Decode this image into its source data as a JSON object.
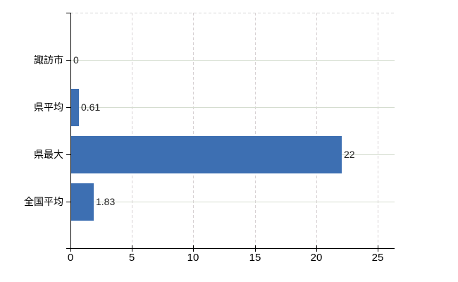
{
  "chart_data": {
    "type": "bar",
    "orientation": "horizontal",
    "title": "",
    "categories": [
      "諏訪市",
      "県平均",
      "県最大",
      "全国平均"
    ],
    "values": [
      0,
      0.61,
      22,
      1.83
    ],
    "value_labels": [
      "0",
      "0.61",
      "22",
      "1.83"
    ],
    "x_ticks": [
      0,
      5,
      10,
      15,
      20,
      25
    ],
    "xlim": [
      0,
      26.4
    ],
    "grid": true,
    "legend": false,
    "colors": {
      "bar": "#3d6fb2",
      "h_grid": "#d5ddd0",
      "v_grid": "#d7d1d3",
      "top_border": "#d4d4d4",
      "axis": "#000000",
      "value_text": "#222222",
      "label_text": "#000000",
      "background": "#ffffff"
    }
  }
}
